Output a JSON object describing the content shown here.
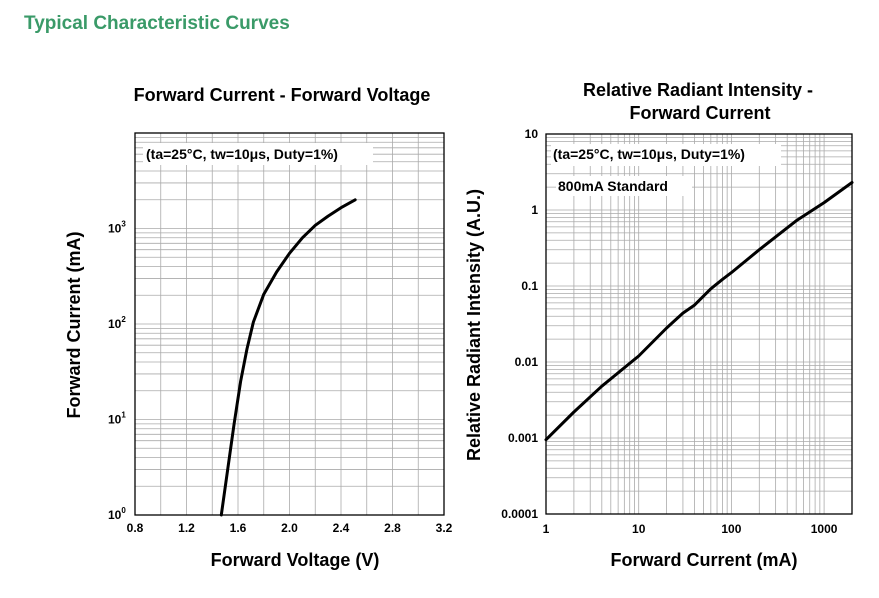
{
  "section_title": "Typical Characteristic Curves",
  "colors": {
    "section_title": "#3a9a68",
    "curve": "#000000",
    "grid": "#aaaaaa",
    "frame": "#000000"
  },
  "chart_data": [
    {
      "type": "line",
      "title": "Forward Current - Forward Voltage",
      "xlabel": "Forward Voltage (V)",
      "ylabel": "Forward Current (mA)",
      "annotation": "(ta=25°C, tw=10μs, Duty=1%)",
      "x_scale": "linear",
      "y_scale": "log",
      "xlim": [
        0.8,
        3.2
      ],
      "ylim": [
        1,
        10000
      ],
      "x_ticks": [
        "0.8",
        "1.2",
        "1.6",
        "2.0",
        "2.4",
        "2.8",
        "3.2"
      ],
      "y_ticks": [
        {
          "base": "10",
          "exp": "0",
          "value": 1
        },
        {
          "base": "10",
          "exp": "1",
          "value": 10
        },
        {
          "base": "10",
          "exp": "2",
          "value": 100
        },
        {
          "base": "10",
          "exp": "3",
          "value": 1000
        }
      ],
      "grid": true,
      "series": [
        {
          "x": [
            1.47,
            1.52,
            1.57,
            1.62,
            1.67,
            1.72,
            1.8,
            1.9,
            2.0,
            2.1,
            2.2,
            2.3,
            2.4,
            2.51
          ],
          "y": [
            1,
            3,
            9,
            25,
            55,
            105,
            205,
            350,
            550,
            800,
            1080,
            1350,
            1650,
            2000
          ]
        }
      ]
    },
    {
      "type": "line",
      "title": "Relative Radiant Intensity - Forward Current",
      "title_lines": [
        "Relative Radiant Intensity -",
        "Forward Current"
      ],
      "xlabel": "Forward Current (mA)",
      "ylabel": "Relative Radiant Intensity (A.U.)",
      "annotations": [
        "(ta=25°C, tw=10μs, Duty=1%)",
        "800mA Standard"
      ],
      "x_scale": "log",
      "y_scale": "log",
      "xlim": [
        1,
        2000
      ],
      "ylim": [
        0.0001,
        10
      ],
      "x_ticks": [
        {
          "label": "1",
          "value": 1
        },
        {
          "label": "10",
          "value": 10
        },
        {
          "label": "100",
          "value": 100
        },
        {
          "label": "1000",
          "value": 1000
        }
      ],
      "y_ticks": [
        {
          "label": "0.0001",
          "value": 0.0001
        },
        {
          "label": "0.001",
          "value": 0.001
        },
        {
          "label": "0.01",
          "value": 0.01
        },
        {
          "label": "0.1",
          "value": 0.1
        },
        {
          "label": "1",
          "value": 1
        },
        {
          "label": "10",
          "value": 10
        }
      ],
      "grid": true,
      "series": [
        {
          "x": [
            1,
            2,
            4,
            10,
            20,
            30,
            40,
            60,
            80,
            100,
            200,
            500,
            1000,
            2000
          ],
          "y": [
            0.00095,
            0.0022,
            0.0048,
            0.012,
            0.028,
            0.044,
            0.056,
            0.092,
            0.122,
            0.15,
            0.3,
            0.72,
            1.25,
            2.3
          ]
        }
      ]
    }
  ]
}
